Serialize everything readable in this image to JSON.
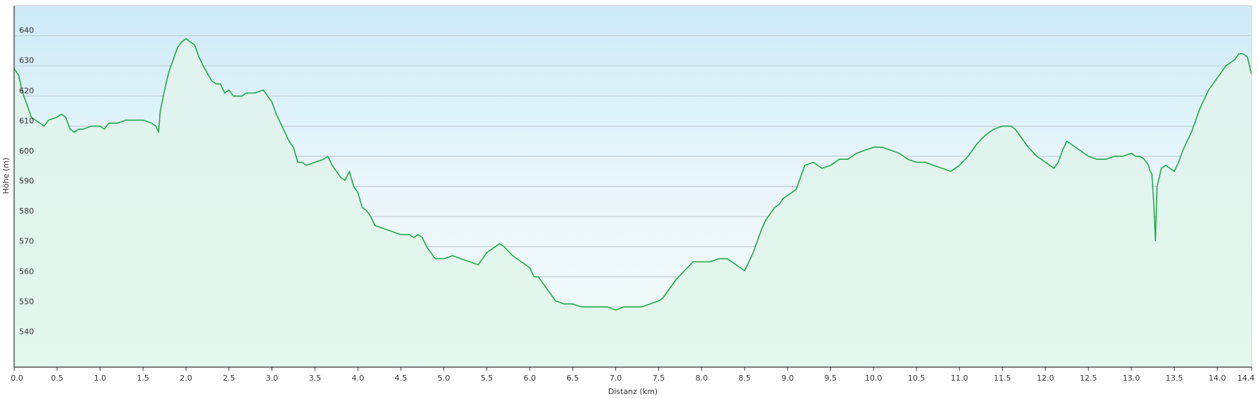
{
  "chart_data": {
    "type": "area",
    "title": "",
    "xlabel": "Distanz  (km)",
    "ylabel": "Höhe (m)",
    "xlim": [
      0,
      14.4
    ],
    "ylim": [
      530,
      650
    ],
    "grid": true,
    "legend": "none",
    "x_ticks": [
      "0.0",
      "0.5",
      "1.0",
      "1.5",
      "2.0",
      "2.5",
      "3.0",
      "3.5",
      "4.0",
      "4.5",
      "5.0",
      "5.5",
      "6.0",
      "6.5",
      "7.0",
      "7.5",
      "8.0",
      "8.5",
      "9.0",
      "9.5",
      "10.0",
      "10.5",
      "11.0",
      "11.5",
      "12.0",
      "12.5",
      "13.0",
      "13.5",
      "14.0",
      "14.4"
    ],
    "y_ticks": [
      "540",
      "550",
      "560",
      "570",
      "580",
      "590",
      "600",
      "610",
      "620",
      "630",
      "640"
    ],
    "series": [
      {
        "name": "",
        "color": "#22a84a",
        "fill_top": "#d4eef8",
        "fill_bottom": "#e6f7ee",
        "x": [
          0.0,
          0.05,
          0.1,
          0.2,
          0.3,
          0.35,
          0.4,
          0.5,
          0.55,
          0.6,
          0.65,
          0.7,
          0.75,
          0.8,
          0.9,
          1.0,
          1.05,
          1.1,
          1.2,
          1.3,
          1.4,
          1.5,
          1.6,
          1.65,
          1.68,
          1.7,
          1.75,
          1.8,
          1.85,
          1.9,
          1.95,
          2.0,
          2.05,
          2.1,
          2.15,
          2.2,
          2.3,
          2.35,
          2.4,
          2.45,
          2.5,
          2.55,
          2.6,
          2.65,
          2.7,
          2.8,
          2.9,
          2.95,
          3.0,
          3.05,
          3.1,
          3.15,
          3.2,
          3.25,
          3.3,
          3.35,
          3.4,
          3.5,
          3.6,
          3.65,
          3.7,
          3.75,
          3.8,
          3.85,
          3.9,
          3.95,
          4.0,
          4.05,
          4.1,
          4.15,
          4.2,
          4.3,
          4.4,
          4.5,
          4.6,
          4.65,
          4.7,
          4.75,
          4.8,
          4.85,
          4.9,
          5.0,
          5.1,
          5.2,
          5.3,
          5.4,
          5.45,
          5.5,
          5.55,
          5.6,
          5.65,
          5.7,
          5.8,
          5.9,
          6.0,
          6.05,
          6.1,
          6.15,
          6.2,
          6.25,
          6.3,
          6.4,
          6.5,
          6.6,
          6.7,
          6.8,
          6.9,
          7.0,
          7.1,
          7.2,
          7.25,
          7.3,
          7.4,
          7.5,
          7.55,
          7.6,
          7.65,
          7.7,
          7.8,
          7.9,
          8.0,
          8.1,
          8.2,
          8.3,
          8.35,
          8.4,
          8.45,
          8.5,
          8.55,
          8.6,
          8.65,
          8.7,
          8.75,
          8.8,
          8.85,
          8.9,
          8.95,
          9.0,
          9.1,
          9.15,
          9.2,
          9.3,
          9.4,
          9.5,
          9.6,
          9.7,
          9.75,
          9.8,
          9.9,
          10.0,
          10.1,
          10.2,
          10.3,
          10.35,
          10.4,
          10.5,
          10.6,
          10.7,
          10.8,
          10.9,
          11.0,
          11.1,
          11.2,
          11.3,
          11.4,
          11.5,
          11.6,
          11.65,
          11.7,
          11.75,
          11.8,
          11.9,
          12.0,
          12.05,
          12.1,
          12.15,
          12.2,
          12.25,
          12.3,
          12.4,
          12.5,
          12.6,
          12.7,
          12.8,
          12.9,
          13.0,
          13.05,
          13.1,
          13.15,
          13.2,
          13.22,
          13.24,
          13.26,
          13.28,
          13.3,
          13.35,
          13.4,
          13.45,
          13.5,
          13.55,
          13.6,
          13.7,
          13.8,
          13.9,
          14.0,
          14.1,
          14.15,
          14.2,
          14.25,
          14.3,
          14.35,
          14.4
        ],
        "y": [
          629,
          627,
          621,
          613,
          611,
          610,
          612,
          613,
          614,
          613,
          609,
          608,
          609,
          609,
          610,
          610,
          609,
          611,
          611,
          612,
          612,
          612,
          611,
          610,
          608,
          615,
          622,
          628,
          632,
          636,
          638,
          639,
          638,
          637,
          633,
          630,
          625,
          624,
          624,
          621,
          622,
          620,
          620,
          620,
          621,
          621,
          622,
          620,
          618,
          614,
          611,
          608,
          605,
          603,
          598,
          598,
          597,
          598,
          599,
          600,
          597,
          595,
          593,
          592,
          595,
          590,
          588,
          583,
          582,
          580,
          577,
          576,
          575,
          574,
          574,
          573,
          574,
          573,
          570,
          568,
          566,
          566,
          567,
          566,
          565,
          564,
          566,
          568,
          569,
          570,
          571,
          570,
          567,
          565,
          563,
          560,
          560,
          558,
          556,
          554,
          552,
          551,
          551,
          550,
          550,
          550,
          550,
          549,
          550,
          550,
          550,
          550,
          551,
          552,
          553,
          555,
          557,
          559,
          562,
          565,
          565,
          565,
          566,
          566,
          565,
          564,
          563,
          562,
          565,
          568,
          572,
          576,
          579,
          581,
          583,
          584,
          586,
          587,
          589,
          593,
          597,
          598,
          596,
          597,
          599,
          599,
          600,
          601,
          602,
          603,
          603,
          602,
          601,
          600,
          599,
          598,
          598,
          597,
          596,
          595,
          597,
          600,
          604,
          607,
          609,
          610,
          610,
          609,
          607,
          605,
          603,
          600,
          598,
          597,
          596,
          598,
          602,
          605,
          604,
          602,
          600,
          599,
          599,
          600,
          600,
          601,
          600,
          600,
          599,
          597,
          595,
          594,
          585,
          572,
          590,
          596,
          597,
          596,
          595,
          598,
          602,
          608,
          616,
          622,
          626,
          630,
          631,
          632,
          634,
          634,
          633,
          627
        ]
      }
    ]
  }
}
